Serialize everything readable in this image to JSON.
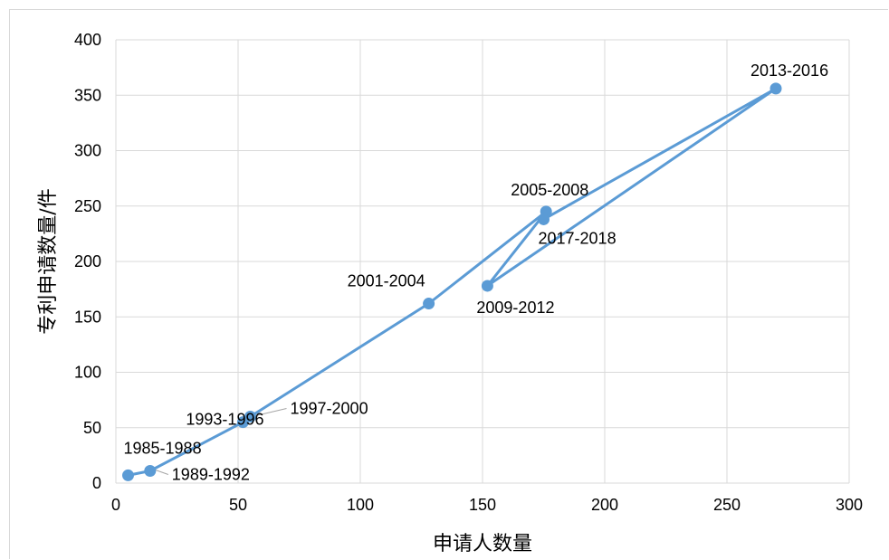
{
  "chart_data": {
    "type": "scatter",
    "title": "",
    "xlabel": "申请人数量",
    "ylabel": "专利申请数量/件",
    "xlim": [
      0,
      300
    ],
    "ylim": [
      0,
      400
    ],
    "x_ticks": [
      "0",
      "50",
      "100",
      "150",
      "200",
      "250",
      "300"
    ],
    "y_ticks": [
      "0",
      "50",
      "100",
      "150",
      "200",
      "250",
      "300",
      "350",
      "400"
    ],
    "grid": true,
    "legend": "none",
    "series": [
      {
        "points": [
          {
            "label": "1985-1988",
            "x": 5,
            "y": 7
          },
          {
            "label": "1989-1992",
            "x": 14,
            "y": 11
          },
          {
            "label": "1993-1996",
            "x": 52,
            "y": 55
          },
          {
            "label": "1997-2000",
            "x": 55,
            "y": 60
          },
          {
            "label": "2001-2004",
            "x": 128,
            "y": 162
          },
          {
            "label": "2005-2008",
            "x": 176,
            "y": 245
          },
          {
            "label": "2009-2012",
            "x": 152,
            "y": 178
          },
          {
            "label": "2013-2016",
            "x": 270,
            "y": 356
          },
          {
            "label": "2017-2018",
            "x": 175,
            "y": 238
          }
        ]
      }
    ],
    "colors": {
      "series": "#5b9bd5",
      "grid": "#d9d9d9",
      "leader": "#a6a6a6"
    }
  }
}
